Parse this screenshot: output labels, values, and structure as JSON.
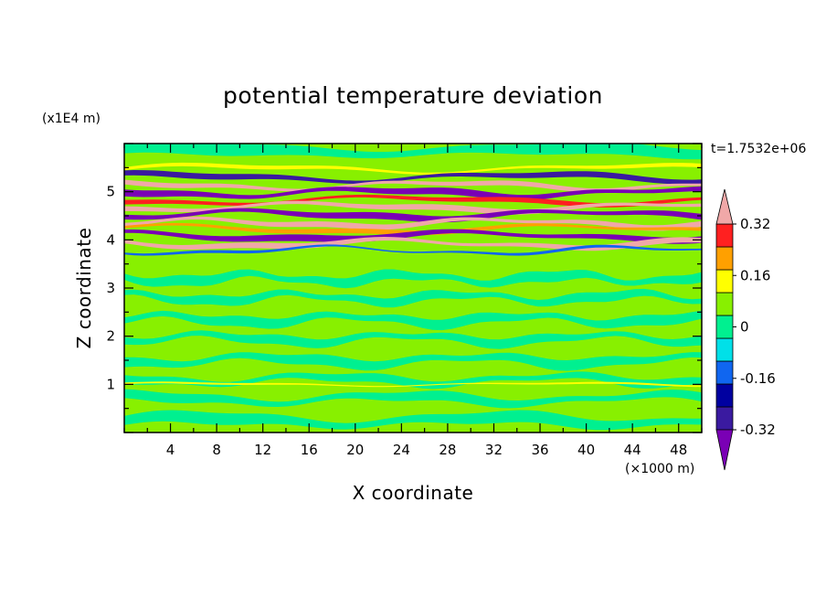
{
  "chart_data": {
    "type": "heatmap",
    "title": "potential temperature deviation",
    "xlabel": "X coordinate",
    "ylabel": "Z coordinate",
    "x_unit": "(×1000 m)",
    "y_unit": "(x1E4 m)",
    "time_label": "t=1.7532e+06",
    "xlim": [
      0,
      50
    ],
    "ylim": [
      0,
      6
    ],
    "x_ticks": [
      "4",
      "8",
      "12",
      "16",
      "20",
      "24",
      "28",
      "32",
      "36",
      "40",
      "44",
      "48"
    ],
    "y_ticks": [
      "1",
      "2",
      "3",
      "4",
      "5"
    ],
    "colorbar": {
      "levels": [
        -0.4,
        -0.32,
        -0.24,
        -0.16,
        -0.08,
        0,
        0.08,
        0.16,
        0.24,
        0.32,
        0.4
      ],
      "labels": [
        "0.32",
        "0.16",
        "0",
        "-0.16",
        "-0.32"
      ],
      "colors": [
        "#7a00b5",
        "#3a1aa0",
        "#0000a0",
        "#1066f0",
        "#00e0e8",
        "#00f090",
        "#88f000",
        "#ffff00",
        "#ffa000",
        "#ff2020",
        "#f0a8a8"
      ]
    },
    "bands": [
      {
        "z": [
          0.0,
          3.7
        ],
        "description_level": "green"
      },
      {
        "z": [
          3.7,
          5.3
        ],
        "description_level": "strong alternating layers"
      },
      {
        "z": [
          5.3,
          6.0
        ],
        "description_level": "green"
      }
    ]
  }
}
